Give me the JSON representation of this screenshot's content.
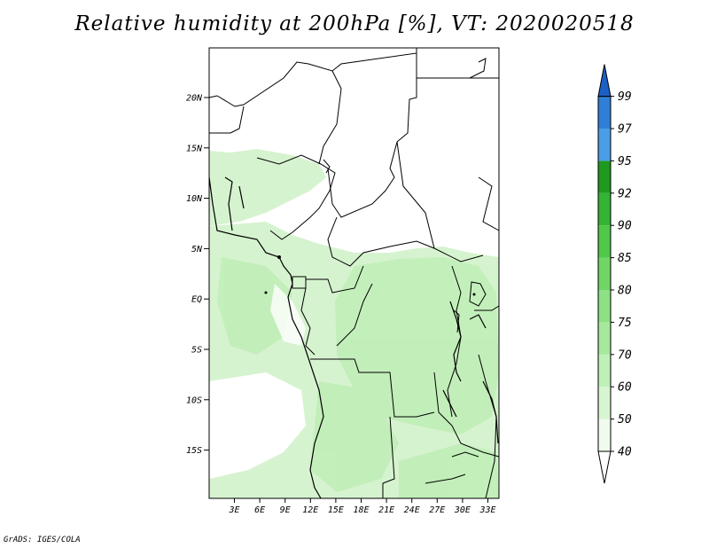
{
  "title": "Relative humidity at 200hPa [%], VT: 2020020518",
  "credit": "GrADS: IGES/COLA",
  "map": {
    "lat_ticks": [
      "20N",
      "15N",
      "10N",
      "5N",
      "EQ",
      "5S",
      "10S",
      "15S"
    ],
    "lon_ticks": [
      "3E",
      "6E",
      "9E",
      "12E",
      "15E",
      "18E",
      "21E",
      "24E",
      "27E",
      "30E",
      "33E"
    ]
  },
  "legend": {
    "levels": [
      "40",
      "50",
      "60",
      "70",
      "75",
      "80",
      "85",
      "90",
      "92",
      "95",
      "97",
      "99"
    ],
    "colors": [
      "#f0fbee",
      "#d8f5d2",
      "#bff0b8",
      "#a6e89c",
      "#8de084",
      "#6fd666",
      "#50c84a",
      "#34b434",
      "#1e9a1e",
      "#4a9ee6",
      "#2f7fd9",
      "#1d5fc4"
    ]
  }
}
